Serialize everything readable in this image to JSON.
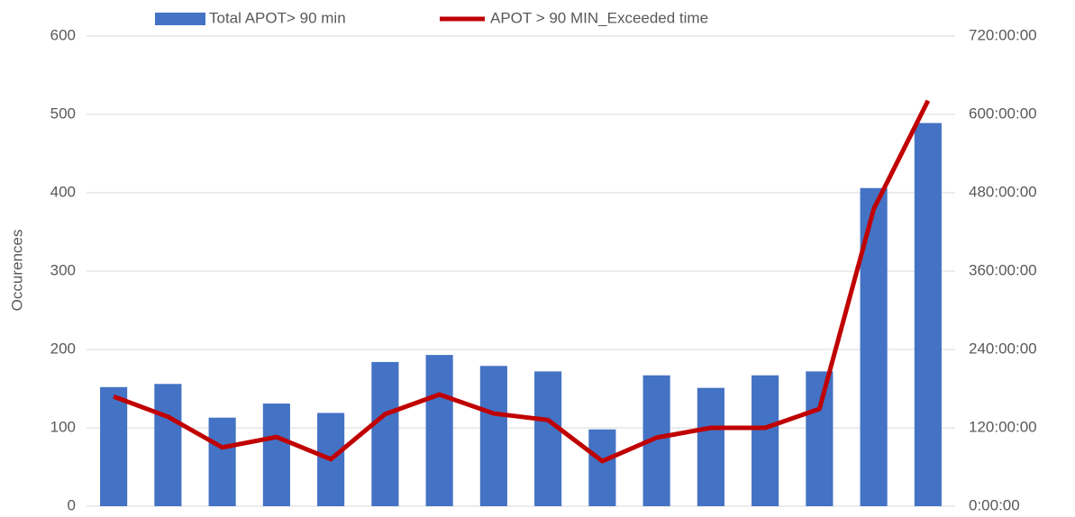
{
  "chart_data": {
    "type": "bar-line",
    "y_label": "Occurences",
    "categories": [
      null,
      null,
      null,
      null,
      null,
      null,
      null,
      null,
      null,
      null,
      null,
      null,
      null,
      null,
      null,
      null
    ],
    "series": [
      {
        "name": "Total APOT> 90 min",
        "type": "bar",
        "color": "#4472c4",
        "values": [
          152,
          156,
          113,
          131,
          119,
          184,
          193,
          179,
          172,
          98,
          167,
          151,
          167,
          172,
          406,
          489
        ]
      },
      {
        "name": "APOT > 90 MIN_Exceeded time",
        "type": "line",
        "axis": "y2",
        "color": "#c00000",
        "values": [
          168,
          137,
          90,
          106,
          72,
          141,
          171,
          142,
          132,
          69,
          105,
          120,
          120,
          149,
          455,
          621
        ]
      }
    ],
    "ylim": [
      0,
      600
    ],
    "yticks": [
      0,
      100,
      200,
      300,
      400,
      500,
      600
    ],
    "y2lim": [
      0,
      720
    ],
    "y2ticks": [
      {
        "value": 0,
        "label": "0:00:00"
      },
      {
        "value": 120,
        "label": "120:00:00"
      },
      {
        "value": 240,
        "label": "240:00:00"
      },
      {
        "value": 360,
        "label": "360:00:00"
      },
      {
        "value": 480,
        "label": "480:00:00"
      },
      {
        "value": 600,
        "label": "600:00:00"
      },
      {
        "value": 720,
        "label": "720:00:00"
      }
    ],
    "grid": true,
    "legend": "top"
  }
}
